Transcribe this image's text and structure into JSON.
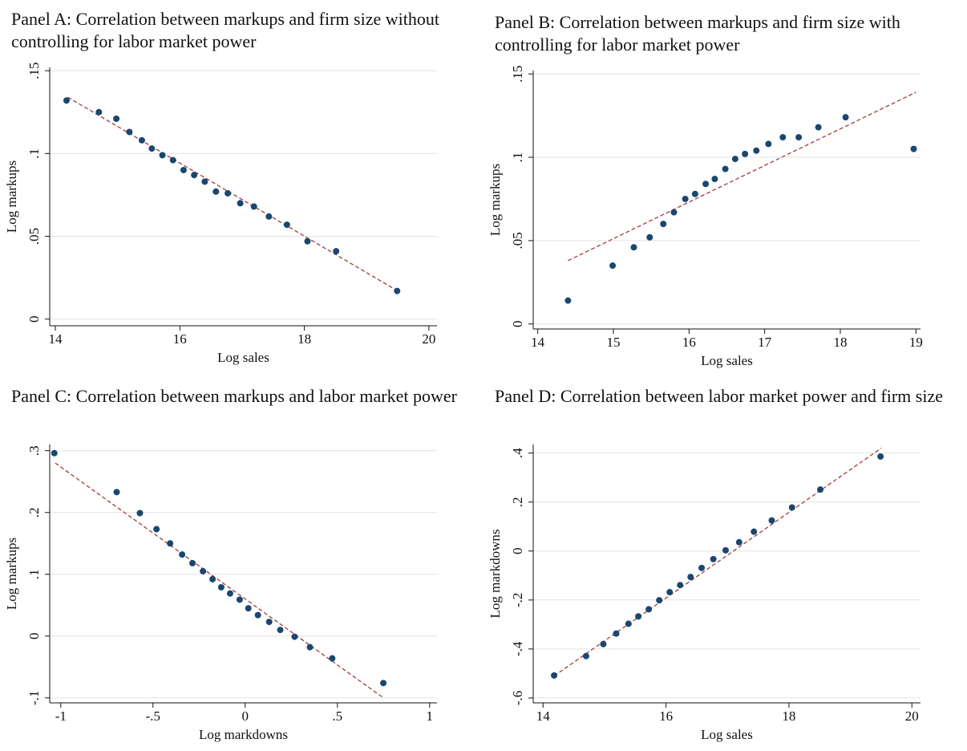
{
  "chart_data": [
    {
      "type": "scatter",
      "title": "Panel A: Correlation between markups and firm size without controlling for labor market power",
      "xlabel": "Log sales",
      "ylabel": "Log markups",
      "color": "#1a476f",
      "x": [
        14.18,
        14.7,
        14.98,
        15.19,
        15.39,
        15.55,
        15.72,
        15.89,
        16.06,
        16.23,
        16.4,
        16.58,
        16.77,
        16.97,
        17.19,
        17.43,
        17.72,
        18.05,
        18.51,
        19.49
      ],
      "values": [
        0.132,
        0.125,
        0.121,
        0.113,
        0.108,
        0.103,
        0.099,
        0.096,
        0.09,
        0.087,
        0.083,
        0.077,
        0.076,
        0.07,
        0.068,
        0.062,
        0.057,
        0.047,
        0.041,
        0.017
      ],
      "fit": {
        "x": [
          14.2,
          19.5
        ],
        "values": [
          0.134,
          0.017
        ],
        "color": "#a03c3c"
      },
      "xlim": [
        13.91,
        20.13
      ],
      "ylim": [
        -0.004,
        0.152
      ],
      "xticks": [
        14,
        16,
        18,
        20
      ],
      "yticks": [
        0,
        {
          "value": 0.05,
          "label": ".05"
        },
        {
          "value": 0.1,
          "label": ".1"
        },
        {
          "value": 0.15,
          "label": ".15"
        }
      ],
      "grid": true
    },
    {
      "type": "scatter",
      "title": "Panel B: Correlation between markups and firm size with controlling for labor market power",
      "xlabel": "Log sales",
      "ylabel": "Log markups",
      "color": "#1a476f",
      "x": [
        14.4,
        14.99,
        15.27,
        15.48,
        15.66,
        15.8,
        15.95,
        16.08,
        16.22,
        16.34,
        16.48,
        16.61,
        16.74,
        16.89,
        17.05,
        17.24,
        17.45,
        17.71,
        18.07,
        18.97
      ],
      "values": [
        0.014,
        0.035,
        0.046,
        0.052,
        0.06,
        0.067,
        0.075,
        0.078,
        0.084,
        0.087,
        0.093,
        0.099,
        0.102,
        0.104,
        0.108,
        0.112,
        0.112,
        0.118,
        0.124,
        0.105
      ],
      "fit": {
        "x": [
          14.4,
          19.0
        ],
        "values": [
          0.038,
          0.139
        ],
        "color": "#a03c3c"
      },
      "xlim": [
        13.94,
        19.06
      ],
      "ylim": [
        -0.003,
        0.152
      ],
      "xticks": [
        14,
        15,
        16,
        17,
        18,
        19
      ],
      "yticks": [
        0,
        {
          "value": 0.05,
          "label": ".05"
        },
        {
          "value": 0.1,
          "label": ".1"
        },
        {
          "value": 0.15,
          "label": ".15"
        }
      ],
      "grid": true
    },
    {
      "type": "scatter",
      "title": "Panel C: Correlation between markups and labor market power",
      "xlabel": "Log markdowns",
      "ylabel": "Log markups",
      "color": "#1a476f",
      "x": [
        -1.035,
        -0.697,
        -0.571,
        -0.481,
        -0.407,
        -0.342,
        -0.286,
        -0.229,
        -0.177,
        -0.13,
        -0.082,
        -0.03,
        0.017,
        0.069,
        0.13,
        0.19,
        0.268,
        0.351,
        0.472,
        0.749
      ],
      "values": [
        0.296,
        0.233,
        0.199,
        0.173,
        0.15,
        0.132,
        0.118,
        0.105,
        0.092,
        0.079,
        0.069,
        0.059,
        0.045,
        0.034,
        0.023,
        0.01,
        -0.001,
        -0.018,
        -0.036,
        -0.076
      ],
      "fit": {
        "x": [
          -1.03,
          0.75
        ],
        "values": [
          0.28,
          -0.1
        ],
        "color": "#a03c3c"
      },
      "xlim": [
        -1.06,
        1.04
      ],
      "ylim": [
        -0.108,
        0.31
      ],
      "xticks": [
        -1,
        {
          "value": -0.5,
          "label": "-.5"
        },
        0,
        {
          "value": 0.5,
          "label": ".5"
        },
        1
      ],
      "yticks": [
        {
          "value": -0.1,
          "label": "-.1"
        },
        0,
        {
          "value": 0.1,
          "label": ".1"
        },
        {
          "value": 0.2,
          "label": ".2"
        },
        {
          "value": 0.3,
          "label": ".3"
        }
      ],
      "grid": true
    },
    {
      "type": "scatter",
      "title": "Panel D: Correlation between labor market power and firm size",
      "xlabel": "Log sales",
      "ylabel": "Log markdowns",
      "color": "#1a476f",
      "x": [
        14.18,
        14.7,
        14.98,
        15.19,
        15.39,
        15.55,
        15.72,
        15.89,
        16.06,
        16.23,
        16.4,
        16.58,
        16.77,
        16.97,
        17.19,
        17.43,
        17.72,
        18.05,
        18.51,
        19.49
      ],
      "values": [
        -0.508,
        -0.429,
        -0.38,
        -0.337,
        -0.297,
        -0.267,
        -0.238,
        -0.201,
        -0.168,
        -0.139,
        -0.106,
        -0.069,
        -0.033,
        0.003,
        0.036,
        0.079,
        0.125,
        0.178,
        0.251,
        0.386
      ],
      "fit": {
        "x": [
          14.18,
          19.5
        ],
        "values": [
          -0.51,
          0.42
        ],
        "color": "#a03c3c"
      },
      "xlim": [
        13.84,
        20.14
      ],
      "ylim": [
        -0.62,
        0.435
      ],
      "xticks": [
        14,
        16,
        18,
        20
      ],
      "yticks": [
        {
          "value": -0.6,
          "label": "-.6"
        },
        {
          "value": -0.4,
          "label": "-.4"
        },
        {
          "value": -0.2,
          "label": "-.2"
        },
        0,
        {
          "value": 0.2,
          "label": ".2"
        },
        {
          "value": 0.4,
          "label": ".4"
        }
      ],
      "grid": true
    }
  ]
}
